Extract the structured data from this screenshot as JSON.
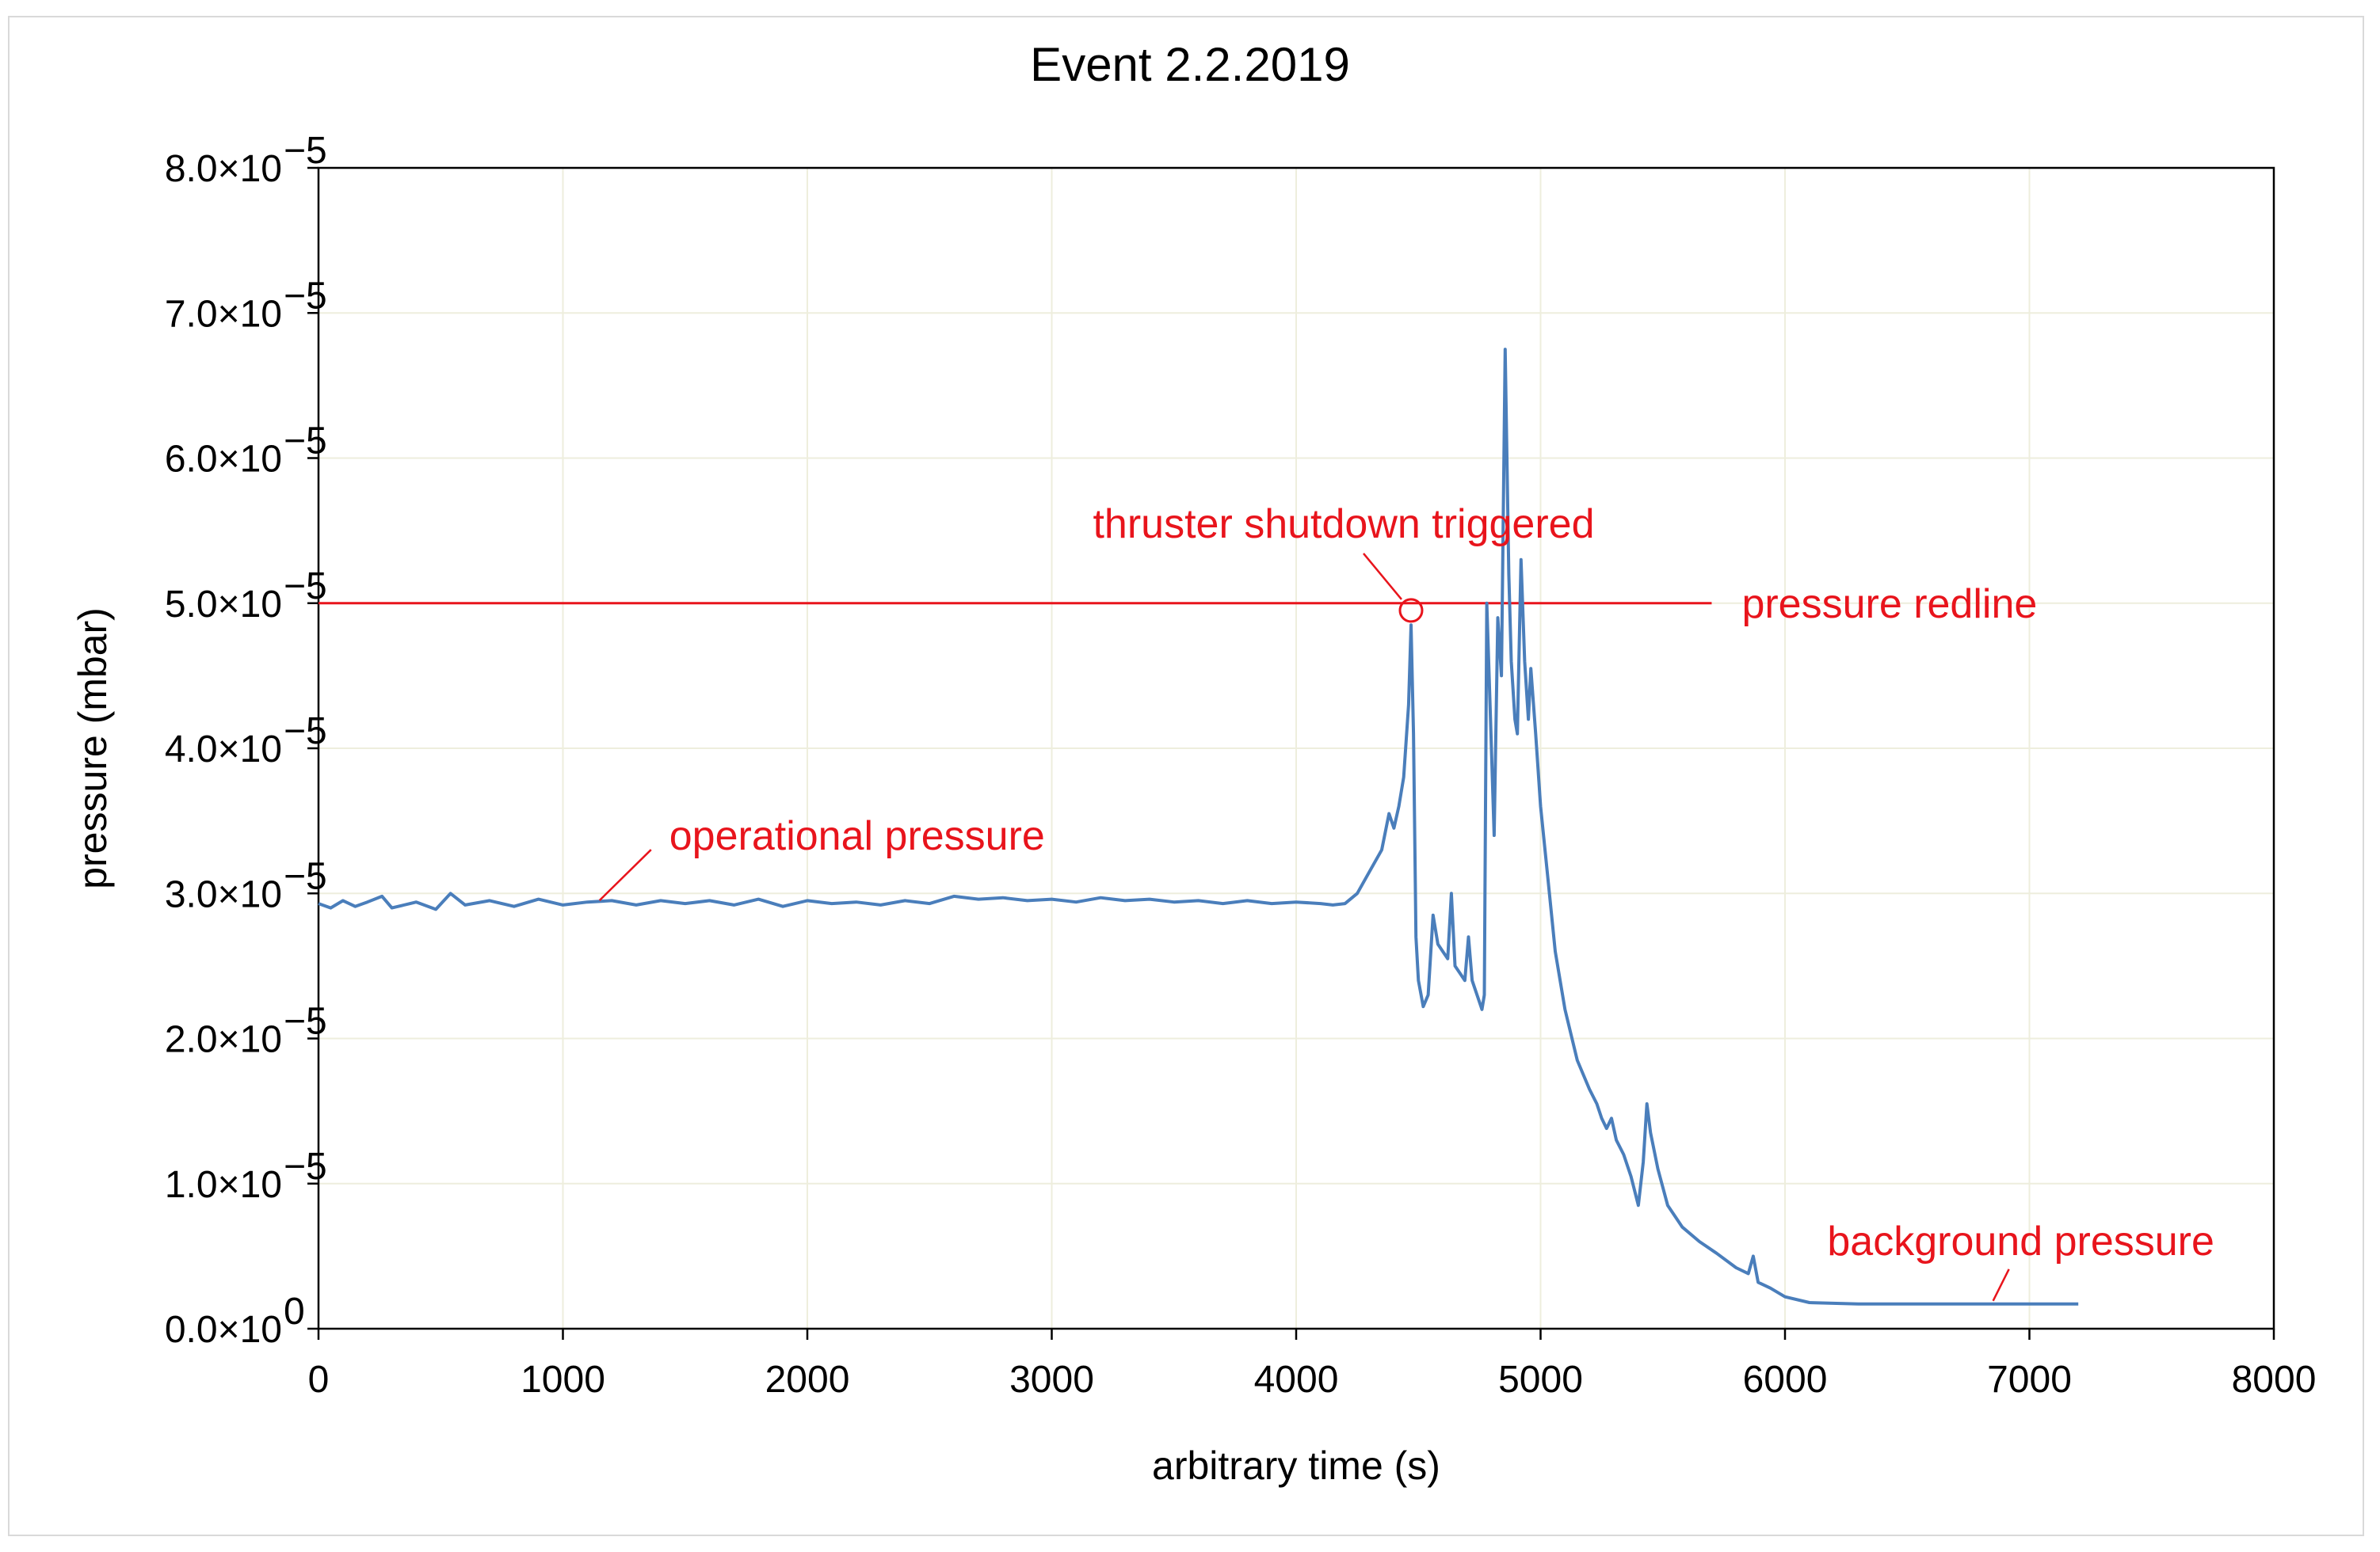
{
  "chart_data": {
    "type": "line",
    "title": "Event 2.2.2019",
    "xlabel": "arbitrary time (s)",
    "ylabel": "pressure (mbar)",
    "xlim": [
      0,
      8000
    ],
    "ylim": [
      0,
      8e-05
    ],
    "x_ticks": [
      "0",
      "1000",
      "2000",
      "3000",
      "4000",
      "5000",
      "6000",
      "7000",
      "8000"
    ],
    "x_tick_values": [
      0,
      1000,
      2000,
      3000,
      4000,
      5000,
      6000,
      7000,
      8000
    ],
    "y_ticks": [
      {
        "value": 8e-05,
        "mantissa": "8.0×10",
        "exponent": "−5"
      },
      {
        "value": 7e-05,
        "mantissa": "7.0×10",
        "exponent": "−5"
      },
      {
        "value": 6e-05,
        "mantissa": "6.0×10",
        "exponent": "−5"
      },
      {
        "value": 5e-05,
        "mantissa": "5.0×10",
        "exponent": "−5"
      },
      {
        "value": 4e-05,
        "mantissa": "4.0×10",
        "exponent": "−5"
      },
      {
        "value": 3e-05,
        "mantissa": "3.0×10",
        "exponent": "−5"
      },
      {
        "value": 2e-05,
        "mantissa": "2.0×10",
        "exponent": "−5"
      },
      {
        "value": 1e-05,
        "mantissa": "1.0×10",
        "exponent": "−5"
      },
      {
        "value": 0,
        "mantissa": "0.0×10",
        "exponent": "0"
      }
    ],
    "grid": true,
    "grid_color": "#eeeedd",
    "series_color": "#4a7ebb",
    "annotation_color": "#e8141c",
    "series": [
      {
        "name": "",
        "points": [
          [
            0,
            2.93e-05
          ],
          [
            50,
            2.9e-05
          ],
          [
            100,
            2.95e-05
          ],
          [
            150,
            2.91e-05
          ],
          [
            200,
            2.94e-05
          ],
          [
            260,
            2.98e-05
          ],
          [
            300,
            2.9e-05
          ],
          [
            400,
            2.94e-05
          ],
          [
            480,
            2.89e-05
          ],
          [
            540,
            3e-05
          ],
          [
            600,
            2.92e-05
          ],
          [
            700,
            2.95e-05
          ],
          [
            800,
            2.91e-05
          ],
          [
            900,
            2.96e-05
          ],
          [
            1000,
            2.92e-05
          ],
          [
            1100,
            2.94e-05
          ],
          [
            1200,
            2.95e-05
          ],
          [
            1300,
            2.92e-05
          ],
          [
            1400,
            2.95e-05
          ],
          [
            1500,
            2.93e-05
          ],
          [
            1600,
            2.95e-05
          ],
          [
            1700,
            2.92e-05
          ],
          [
            1800,
            2.96e-05
          ],
          [
            1900,
            2.91e-05
          ],
          [
            2000,
            2.95e-05
          ],
          [
            2100,
            2.93e-05
          ],
          [
            2200,
            2.94e-05
          ],
          [
            2300,
            2.92e-05
          ],
          [
            2400,
            2.95e-05
          ],
          [
            2500,
            2.93e-05
          ],
          [
            2600,
            2.98e-05
          ],
          [
            2700,
            2.96e-05
          ],
          [
            2800,
            2.97e-05
          ],
          [
            2900,
            2.95e-05
          ],
          [
            3000,
            2.96e-05
          ],
          [
            3100,
            2.94e-05
          ],
          [
            3200,
            2.97e-05
          ],
          [
            3300,
            2.95e-05
          ],
          [
            3400,
            2.96e-05
          ],
          [
            3500,
            2.94e-05
          ],
          [
            3600,
            2.95e-05
          ],
          [
            3700,
            2.93e-05
          ],
          [
            3800,
            2.95e-05
          ],
          [
            3900,
            2.93e-05
          ],
          [
            4000,
            2.94e-05
          ],
          [
            4100,
            2.93e-05
          ],
          [
            4150,
            2.92e-05
          ],
          [
            4200,
            2.93e-05
          ],
          [
            4250,
            3e-05
          ],
          [
            4300,
            3.15e-05
          ],
          [
            4350,
            3.3e-05
          ],
          [
            4380,
            3.55e-05
          ],
          [
            4400,
            3.45e-05
          ],
          [
            4420,
            3.6e-05
          ],
          [
            4440,
            3.8e-05
          ],
          [
            4460,
            4.3e-05
          ],
          [
            4470,
            4.85e-05
          ],
          [
            4480,
            4.1e-05
          ],
          [
            4490,
            2.7e-05
          ],
          [
            4500,
            2.4e-05
          ],
          [
            4520,
            2.22e-05
          ],
          [
            4540,
            2.3e-05
          ],
          [
            4560,
            2.85e-05
          ],
          [
            4580,
            2.65e-05
          ],
          [
            4600,
            2.6e-05
          ],
          [
            4620,
            2.55e-05
          ],
          [
            4635,
            3e-05
          ],
          [
            4650,
            2.5e-05
          ],
          [
            4670,
            2.45e-05
          ],
          [
            4690,
            2.4e-05
          ],
          [
            4705,
            2.7e-05
          ],
          [
            4720,
            2.4e-05
          ],
          [
            4740,
            2.3e-05
          ],
          [
            4760,
            2.2e-05
          ],
          [
            4770,
            2.3e-05
          ],
          [
            4780,
            5e-05
          ],
          [
            4795,
            4.2e-05
          ],
          [
            4810,
            3.4e-05
          ],
          [
            4825,
            4.9e-05
          ],
          [
            4840,
            4.5e-05
          ],
          [
            4855,
            6.75e-05
          ],
          [
            4870,
            5.2e-05
          ],
          [
            4880,
            4.6e-05
          ],
          [
            4895,
            4.2e-05
          ],
          [
            4905,
            4.1e-05
          ],
          [
            4920,
            5.3e-05
          ],
          [
            4935,
            4.6e-05
          ],
          [
            4950,
            4.2e-05
          ],
          [
            4960,
            4.55e-05
          ],
          [
            4980,
            4.1e-05
          ],
          [
            5000,
            3.6e-05
          ],
          [
            5030,
            3.1e-05
          ],
          [
            5060,
            2.6e-05
          ],
          [
            5100,
            2.2e-05
          ],
          [
            5150,
            1.85e-05
          ],
          [
            5200,
            1.65e-05
          ],
          [
            5230,
            1.55e-05
          ],
          [
            5250,
            1.45e-05
          ],
          [
            5270,
            1.38e-05
          ],
          [
            5290,
            1.45e-05
          ],
          [
            5310,
            1.3e-05
          ],
          [
            5340,
            1.2e-05
          ],
          [
            5370,
            1.05e-05
          ],
          [
            5400,
            8.5e-06
          ],
          [
            5420,
            1.15e-05
          ],
          [
            5435,
            1.55e-05
          ],
          [
            5450,
            1.35e-05
          ],
          [
            5480,
            1.1e-05
          ],
          [
            5520,
            8.5e-06
          ],
          [
            5580,
            7e-06
          ],
          [
            5650,
            6e-06
          ],
          [
            5720,
            5.2e-06
          ],
          [
            5800,
            4.2e-06
          ],
          [
            5850,
            3.8e-06
          ],
          [
            5870,
            5e-06
          ],
          [
            5890,
            3.2e-06
          ],
          [
            5940,
            2.8e-06
          ],
          [
            6000,
            2.2e-06
          ],
          [
            6100,
            1.8e-06
          ],
          [
            6300,
            1.7e-06
          ],
          [
            6600,
            1.7e-06
          ],
          [
            6900,
            1.7e-06
          ],
          [
            7200,
            1.7e-06
          ]
        ]
      }
    ],
    "redline": {
      "value": 5e-05,
      "x_range": [
        0,
        5700
      ],
      "label": "pressure redline"
    },
    "annotations": [
      {
        "text": "thruster shutdown triggered",
        "x": 4470,
        "y": 4.95e-05,
        "circle": true
      },
      {
        "text": "operational pressure",
        "x": 1150,
        "y": 2.93e-05
      },
      {
        "text": "pressure redline",
        "x": 5700,
        "y": 5e-05
      },
      {
        "text": "background pressure",
        "x": 6900,
        "y": 1.7e-06
      }
    ]
  }
}
